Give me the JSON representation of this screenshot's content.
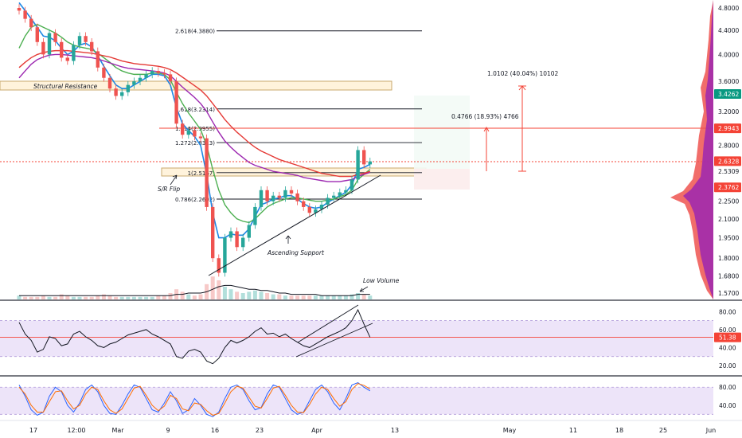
{
  "colors": {
    "up": "#26a69a",
    "down": "#ef5350",
    "ema_fast": "#1e88e5",
    "ema_mid": "#4caf50",
    "ema_slow_purple": "#9c27b0",
    "ema_slow_red": "#e53935",
    "rsi_band": "#e6d8f7",
    "current_price": "#f44336",
    "green_badge": "#089981"
  },
  "chart_data": [
    {
      "type": "line",
      "pane": "price",
      "price_axis": {
        "ticks": [
          "4.8000",
          "4.4000",
          "4.0000",
          "3.6000",
          "3.2000",
          "2.8000",
          "2.5309",
          "2.2500",
          "2.1000",
          "1.9500",
          "1.8000",
          "1.6800",
          "1.5700"
        ],
        "badges": [
          {
            "label": "3.4262",
            "color": "#089981"
          },
          {
            "label": "2.9943",
            "color": "#f44336"
          },
          {
            "label": "2.6328",
            "color": "#f44336"
          },
          {
            "label": "2.3762",
            "color": "#f44336"
          }
        ],
        "ylim": [
          1.55,
          4.9
        ]
      },
      "time_axis": {
        "ticks": [
          "17",
          "12:00",
          "Mar",
          "9",
          "16",
          "23",
          "Apr",
          "13",
          "May",
          "11",
          "18",
          "25",
          "Jun"
        ]
      },
      "fib_levels": [
        {
          "label": "2.618(4.3880)",
          "value": 4.388
        },
        {
          "label": "1.618(3.2314)",
          "value": 3.2314
        },
        {
          "label": "1.414(2.9955)",
          "value": 2.9955
        },
        {
          "label": "1.272(2.8313)",
          "value": 2.8313
        },
        {
          "label": "1(2.5167)",
          "value": 2.5167
        },
        {
          "label": "0.786(2.2692)",
          "value": 2.2692
        }
      ],
      "zones": [
        {
          "label": "Structural Resistance",
          "from": 3.47,
          "to": 3.57
        },
        {
          "label": "",
          "from": 2.47,
          "to": 2.56
        }
      ],
      "annotations": [
        {
          "text": "Structural Resistance"
        },
        {
          "text": "S/R Flip"
        },
        {
          "text": "Ascending Support"
        },
        {
          "text": "Low Volume"
        },
        {
          "text": "1.0102 (40.04%) 10102"
        },
        {
          "text": "0.4766 (18.93%) 4766"
        }
      ],
      "series": [
        {
          "name": "",
          "kind": "candles",
          "close": [
            4.75,
            4.6,
            4.45,
            4.2,
            4.0,
            4.35,
            4.2,
            3.95,
            3.9,
            4.15,
            4.3,
            4.2,
            4.05,
            3.8,
            3.65,
            3.5,
            3.4,
            3.45,
            3.55,
            3.6,
            3.65,
            3.7,
            3.75,
            3.72,
            3.7,
            3.6,
            3.05,
            2.92,
            2.97,
            2.9,
            2.88,
            2.2,
            1.8,
            1.7,
            1.95,
            2.0,
            1.88,
            1.95,
            2.05,
            2.2,
            2.35,
            2.25,
            2.3,
            2.28,
            2.35,
            2.32,
            2.25,
            2.2,
            2.15,
            2.18,
            2.22,
            2.28,
            2.3,
            2.33,
            2.35,
            2.45,
            2.75,
            2.6,
            2.63
          ]
        },
        {
          "name": "",
          "kind": "ema",
          "values": [
            4.9,
            4.75,
            4.6,
            4.45,
            4.3,
            4.28,
            4.22,
            4.1,
            4.0,
            4.05,
            4.15,
            4.18,
            4.12,
            3.98,
            3.82,
            3.68,
            3.55,
            3.5,
            3.5,
            3.55,
            3.6,
            3.65,
            3.7,
            3.7,
            3.68,
            3.55,
            3.25,
            3.05,
            2.97,
            2.9,
            2.8,
            2.5,
            2.15,
            1.95,
            1.95,
            1.98,
            1.97,
            1.97,
            2.02,
            2.12,
            2.22,
            2.24,
            2.27,
            2.28,
            2.3,
            2.3,
            2.27,
            2.23,
            2.2,
            2.19,
            2.2,
            2.24,
            2.27,
            2.3,
            2.33,
            2.4,
            2.55,
            2.57,
            2.6
          ]
        },
        {
          "name": "",
          "kind": "ema",
          "values": [
            4.1,
            4.3,
            4.45,
            4.5,
            4.45,
            4.4,
            4.35,
            4.28,
            4.2,
            4.15,
            4.12,
            4.1,
            4.08,
            4.02,
            3.95,
            3.88,
            3.8,
            3.75,
            3.72,
            3.7,
            3.7,
            3.7,
            3.72,
            3.72,
            3.7,
            3.62,
            3.45,
            3.3,
            3.18,
            3.08,
            2.98,
            2.8,
            2.55,
            2.35,
            2.22,
            2.15,
            2.1,
            2.08,
            2.07,
            2.1,
            2.15,
            2.2,
            2.23,
            2.25,
            2.27,
            2.28,
            2.28,
            2.27,
            2.26,
            2.25,
            2.25,
            2.26,
            2.27,
            2.29,
            2.31,
            2.35,
            2.45,
            2.5,
            2.55
          ]
        },
        {
          "name": "",
          "kind": "ema",
          "values": [
            3.65,
            3.75,
            3.85,
            3.92,
            3.96,
            3.99,
            4.0,
            4.0,
            3.99,
            3.98,
            3.97,
            3.96,
            3.95,
            3.93,
            3.9,
            3.87,
            3.84,
            3.81,
            3.79,
            3.78,
            3.77,
            3.76,
            3.75,
            3.74,
            3.72,
            3.68,
            3.6,
            3.52,
            3.45,
            3.38,
            3.3,
            3.2,
            3.07,
            2.95,
            2.85,
            2.78,
            2.72,
            2.67,
            2.62,
            2.59,
            2.57,
            2.55,
            2.53,
            2.52,
            2.51,
            2.5,
            2.49,
            2.47,
            2.46,
            2.45,
            2.44,
            2.43,
            2.43,
            2.43,
            2.44,
            2.45,
            2.48,
            2.5,
            2.52
          ]
        },
        {
          "name": "",
          "kind": "ema",
          "values": [
            3.8,
            3.88,
            3.95,
            4.0,
            4.03,
            4.05,
            4.06,
            4.06,
            4.06,
            4.05,
            4.04,
            4.03,
            4.02,
            4.0,
            3.98,
            3.96,
            3.93,
            3.9,
            3.88,
            3.86,
            3.85,
            3.84,
            3.83,
            3.82,
            3.8,
            3.77,
            3.72,
            3.66,
            3.6,
            3.54,
            3.48,
            3.4,
            3.3,
            3.2,
            3.1,
            3.02,
            2.95,
            2.89,
            2.83,
            2.78,
            2.74,
            2.71,
            2.68,
            2.65,
            2.63,
            2.61,
            2.59,
            2.57,
            2.55,
            2.53,
            2.51,
            2.5,
            2.49,
            2.48,
            2.48,
            2.48,
            2.5,
            2.51,
            2.53
          ]
        }
      ]
    },
    {
      "type": "line",
      "pane": "rsi",
      "price_axis": {
        "ticks": [
          "80.00",
          "60.00",
          "40.00",
          "20.00"
        ],
        "badge": "51.38",
        "ylim": [
          12,
          90
        ]
      },
      "band": [
        30,
        70
      ],
      "series": [
        {
          "name": "",
          "values": [
            68,
            55,
            48,
            35,
            38,
            52,
            50,
            42,
            44,
            55,
            58,
            52,
            48,
            42,
            40,
            44,
            46,
            50,
            54,
            56,
            58,
            60,
            55,
            52,
            48,
            44,
            30,
            28,
            36,
            38,
            35,
            25,
            22,
            28,
            40,
            48,
            45,
            48,
            52,
            58,
            62,
            55,
            56,
            52,
            55,
            50,
            46,
            42,
            40,
            44,
            48,
            52,
            55,
            58,
            62,
            70,
            82,
            66,
            51.38
          ]
        }
      ]
    },
    {
      "type": "line",
      "pane": "stoch",
      "price_axis": {
        "ticks": [
          "80.00",
          "40.00"
        ],
        "ylim": [
          10,
          98
        ]
      },
      "band": [
        20,
        80
      ],
      "series": [
        {
          "name": "",
          "values": [
            85,
            60,
            30,
            18,
            25,
            60,
            80,
            70,
            40,
            25,
            45,
            75,
            85,
            70,
            40,
            22,
            20,
            40,
            65,
            85,
            80,
            55,
            30,
            25,
            45,
            70,
            50,
            22,
            30,
            55,
            40,
            20,
            15,
            25,
            55,
            80,
            85,
            75,
            50,
            30,
            35,
            65,
            85,
            80,
            55,
            30,
            20,
            25,
            50,
            75,
            85,
            70,
            45,
            30,
            55,
            85,
            90,
            80,
            72
          ]
        },
        {
          "name": "",
          "values": [
            80,
            65,
            40,
            25,
            25,
            48,
            70,
            72,
            50,
            32,
            40,
            65,
            80,
            75,
            50,
            30,
            22,
            32,
            55,
            78,
            82,
            62,
            40,
            28,
            38,
            62,
            55,
            32,
            28,
            45,
            42,
            28,
            18,
            22,
            45,
            70,
            82,
            78,
            58,
            38,
            34,
            55,
            78,
            82,
            62,
            40,
            25,
            24,
            42,
            65,
            80,
            75,
            55,
            38,
            48,
            75,
            88,
            84,
            76
          ]
        }
      ]
    }
  ],
  "volume": {
    "values": [
      3,
      2,
      2,
      2,
      3,
      2,
      2,
      4,
      3,
      2,
      2,
      2,
      2,
      3,
      4,
      3,
      2,
      2,
      2,
      2,
      2,
      2,
      2,
      3,
      3,
      5,
      8,
      6,
      4,
      3,
      4,
      12,
      18,
      15,
      10,
      8,
      6,
      5,
      6,
      7,
      6,
      5,
      4,
      4,
      3,
      3,
      3,
      3,
      3,
      3,
      3,
      3,
      3,
      3,
      3,
      4,
      5,
      4,
      3
    ],
    "ma": [
      3,
      3,
      3,
      3,
      3,
      3,
      3,
      3,
      3,
      3,
      3,
      3,
      3,
      3,
      3,
      3,
      3,
      3,
      3,
      3,
      3,
      3,
      3,
      3,
      3,
      3,
      4,
      4,
      5,
      5,
      5,
      6,
      8,
      10,
      11,
      11,
      10,
      9,
      8,
      8,
      7,
      7,
      6,
      5,
      5,
      4,
      4,
      4,
      4,
      4,
      3,
      3,
      3,
      3,
      3,
      3,
      4,
      4,
      4
    ]
  }
}
